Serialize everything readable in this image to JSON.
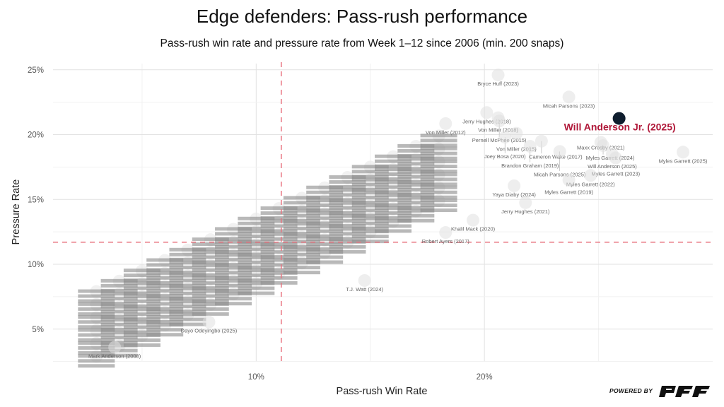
{
  "chart_data": {
    "type": "scatter",
    "title": "Edge defenders: Pass-rush performance",
    "subtitle": "Pass-rush win rate and pressure rate from Week 1–12 since 2006 (min. 200 snaps)",
    "xlabel": "Pass-rush Win Rate",
    "ylabel": "Pressure Rate",
    "xlim": [
      1.1,
      30
    ],
    "ylim": [
      2.2,
      25.6
    ],
    "x_ticks": [
      {
        "value": 10,
        "label": "10%"
      },
      {
        "value": 20,
        "label": "20%"
      }
    ],
    "y_ticks": [
      {
        "value": 5,
        "label": "5%"
      },
      {
        "value": 10,
        "label": "10%"
      },
      {
        "value": 15,
        "label": "15%"
      },
      {
        "value": 20,
        "label": "20%"
      },
      {
        "value": 25,
        "label": "25%"
      }
    ],
    "grid": true,
    "reference_lines": {
      "x": 11.1,
      "y": 11.7,
      "color": "#e8737f",
      "style": "dashed"
    },
    "highlight": {
      "label": "Will Anderson Jr. (2025)",
      "x": 25.9,
      "y": 21.25,
      "point_color": "#0f1e2e",
      "label_color": "#b0193a"
    },
    "labeled_points": [
      {
        "label": "Bryce Huff (2023)",
        "x": 20.6,
        "y": 24.6
      },
      {
        "label": "Micah Parsons (2023)",
        "x": 23.7,
        "y": 22.9
      },
      {
        "label": "Jerry Hughes (2018)",
        "x": 20.1,
        "y": 21.7
      },
      {
        "label": "Von Miller (2018)",
        "x": 20.6,
        "y": 21.3
      },
      {
        "label": "Pernell McPhee (2015)",
        "x": 20.65,
        "y": 21.05
      },
      {
        "label": "Von Miller (2012)",
        "x": 18.3,
        "y": 20.85
      },
      {
        "label": "Von Miller (2015)",
        "x": 21.4,
        "y": 20.1
      },
      {
        "label": "Joey Bosa (2020)",
        "x": 20.9,
        "y": 19.8
      },
      {
        "label": "Cameron Wake (2017)",
        "x": 22.5,
        "y": 19.5
      },
      {
        "label": "Maxx Crosby (2021)",
        "x": 25.1,
        "y": 19.4
      },
      {
        "label": "Myles Garrett (2024)",
        "x": 25.2,
        "y": 19.15
      },
      {
        "label": "Brandon Graham (2019)",
        "x": 22.0,
        "y": 19.1
      },
      {
        "label": "Micah Parsons (2025)",
        "x": 23.3,
        "y": 18.7
      },
      {
        "label": "Myles Garrett (2025)",
        "x": 28.7,
        "y": 18.65
      },
      {
        "label": "Will Anderson (2025)",
        "x": 25.6,
        "y": 18.5
      },
      {
        "label": "Myles Garrett (2023)",
        "x": 25.75,
        "y": 18.2
      },
      {
        "label": "Myles Garrett (2022)",
        "x": 24.65,
        "y": 16.85
      },
      {
        "label": "Myles Garrett (2019)",
        "x": 23.7,
        "y": 16.5
      },
      {
        "label": "Yaya Diaby (2024)",
        "x": 21.3,
        "y": 16.05
      },
      {
        "label": "Jerry Hughes (2021)",
        "x": 21.8,
        "y": 14.75
      },
      {
        "label": "Khalil Mack (2020)",
        "x": 19.5,
        "y": 13.4
      },
      {
        "label": "Robert Ayers (2017)",
        "x": 18.3,
        "y": 12.45
      },
      {
        "label": "T.J. Watt (2024)",
        "x": 14.75,
        "y": 8.75
      },
      {
        "label": "Dayo Odeyingbo (2025)",
        "x": 7.93,
        "y": 5.55
      },
      {
        "label": "Mark Anderson (2008)",
        "x": 3.8,
        "y": 3.6
      }
    ],
    "other_points": [
      [
        3,
        2.9
      ],
      [
        3,
        3.9
      ],
      [
        3,
        4.9
      ],
      [
        3,
        5.9
      ],
      [
        3,
        6.9
      ],
      [
        3,
        7.9
      ],
      [
        4,
        3.7
      ],
      [
        4,
        4.7
      ],
      [
        4,
        5.7
      ],
      [
        4,
        6.7
      ],
      [
        4,
        7.7
      ],
      [
        4,
        8.7
      ],
      [
        5,
        4.5
      ],
      [
        5,
        5.5
      ],
      [
        5,
        6.5
      ],
      [
        5,
        7.5
      ],
      [
        5,
        8.5
      ],
      [
        5,
        9.5
      ],
      [
        6,
        5.3
      ],
      [
        6,
        6.3
      ],
      [
        6,
        7.3
      ],
      [
        6,
        8.3
      ],
      [
        6,
        9.3
      ],
      [
        6,
        10.3
      ],
      [
        7,
        6.1
      ],
      [
        7,
        7.1
      ],
      [
        7,
        8.1
      ],
      [
        7,
        9.1
      ],
      [
        7,
        10.1
      ],
      [
        7,
        11.1
      ],
      [
        8,
        6.9
      ],
      [
        8,
        7.9
      ],
      [
        8,
        8.9
      ],
      [
        8,
        9.9
      ],
      [
        8,
        10.9
      ],
      [
        8,
        11.9
      ],
      [
        9,
        7.7
      ],
      [
        9,
        8.7
      ],
      [
        9,
        9.7
      ],
      [
        9,
        10.7
      ],
      [
        9,
        11.7
      ],
      [
        9,
        12.7
      ],
      [
        10,
        8.5
      ],
      [
        10,
        9.5
      ],
      [
        10,
        10.5
      ],
      [
        10,
        11.5
      ],
      [
        10,
        12.5
      ],
      [
        10,
        13.5
      ],
      [
        11,
        9.3
      ],
      [
        11,
        10.3
      ],
      [
        11,
        11.3
      ],
      [
        11,
        12.3
      ],
      [
        11,
        13.3
      ],
      [
        11,
        14.3
      ],
      [
        12,
        10.1
      ],
      [
        12,
        11.1
      ],
      [
        12,
        12.1
      ],
      [
        12,
        13.1
      ],
      [
        12,
        14.1
      ],
      [
        12,
        15.1
      ],
      [
        13,
        10.9
      ],
      [
        13,
        11.9
      ],
      [
        13,
        12.9
      ],
      [
        13,
        13.9
      ],
      [
        13,
        14.9
      ],
      [
        13,
        15.9
      ],
      [
        14,
        11.7
      ],
      [
        14,
        12.7
      ],
      [
        14,
        13.7
      ],
      [
        14,
        14.7
      ],
      [
        14,
        15.7
      ],
      [
        14,
        16.7
      ],
      [
        15,
        12.5
      ],
      [
        15,
        13.5
      ],
      [
        15,
        14.5
      ],
      [
        15,
        15.5
      ],
      [
        15,
        16.5
      ],
      [
        15,
        17.5
      ],
      [
        16,
        13.3
      ],
      [
        16,
        14.3
      ],
      [
        16,
        15.3
      ],
      [
        16,
        16.3
      ],
      [
        16,
        17.3
      ],
      [
        16,
        18.3
      ],
      [
        17,
        14.1
      ],
      [
        17,
        15.1
      ],
      [
        17,
        16.1
      ],
      [
        17,
        17.1
      ],
      [
        17,
        18.1
      ],
      [
        17,
        19.1
      ],
      [
        18,
        14.9
      ],
      [
        18,
        15.9
      ],
      [
        18,
        16.9
      ],
      [
        18,
        17.9
      ],
      [
        18,
        18.9
      ],
      [
        18,
        19.9
      ]
    ]
  },
  "branding": {
    "powered_by": "POWERED BY",
    "logo_text": "PFF"
  }
}
